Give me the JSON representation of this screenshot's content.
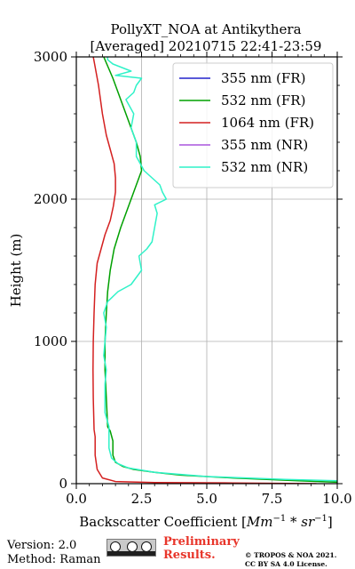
{
  "chart_data": {
    "type": "line",
    "title": "PollyXT_NOA at Antikythera",
    "subtitle": "[Averaged] 20210715 22:41-23:59",
    "xlabel": "Backscatter Coefficient [",
    "xlabel_math": "Mm",
    "xlabel_sup1": "−1",
    "xlabel_mid": " * ",
    "xlabel_math2": "sr",
    "xlabel_sup2": "−1",
    "xlabel_end": "]",
    "ylabel": "Height (m)",
    "xlim": [
      0,
      10
    ],
    "ylim": [
      0,
      3000
    ],
    "xticks": [
      0,
      2.5,
      5,
      7.5,
      10
    ],
    "xtick_labels": [
      "0.0",
      "2.5",
      "5.0",
      "7.5",
      "10.0"
    ],
    "yticks": [
      0,
      1000,
      2000,
      3000
    ],
    "ytick_labels": [
      "0",
      "1000",
      "2000",
      "3000"
    ],
    "grid": true,
    "legend_position": "top-right",
    "series": [
      {
        "name": "355 nm (FR)",
        "color": "#2222cc",
        "points": []
      },
      {
        "name": "532 nm (FR)",
        "color": "#00a000",
        "points": [
          [
            10,
            10
          ],
          [
            8.5,
            20
          ],
          [
            6,
            40
          ],
          [
            4,
            60
          ],
          [
            3,
            80
          ],
          [
            2.2,
            100
          ],
          [
            1.8,
            120
          ],
          [
            1.5,
            150
          ],
          [
            1.4,
            200
          ],
          [
            1.4,
            300
          ],
          [
            1.3,
            370
          ],
          [
            1.2,
            400
          ],
          [
            1.15,
            600
          ],
          [
            1.1,
            800
          ],
          [
            1.1,
            1000
          ],
          [
            1.15,
            1200
          ],
          [
            1.2,
            1350
          ],
          [
            1.3,
            1500
          ],
          [
            1.45,
            1650
          ],
          [
            1.7,
            1800
          ],
          [
            2.0,
            1950
          ],
          [
            2.3,
            2100
          ],
          [
            2.5,
            2200
          ],
          [
            2.45,
            2300
          ],
          [
            2.3,
            2400
          ],
          [
            2.0,
            2550
          ],
          [
            1.7,
            2700
          ],
          [
            1.4,
            2850
          ],
          [
            1.05,
            3000
          ]
        ]
      },
      {
        "name": "1064 nm (FR)",
        "color": "#d42020",
        "points": [
          [
            9.2,
            0
          ],
          [
            6,
            5
          ],
          [
            3,
            8
          ],
          [
            1.5,
            15
          ],
          [
            1.0,
            40
          ],
          [
            0.8,
            100
          ],
          [
            0.72,
            200
          ],
          [
            0.72,
            330
          ],
          [
            0.68,
            380
          ],
          [
            0.65,
            600
          ],
          [
            0.64,
            800
          ],
          [
            0.65,
            1000
          ],
          [
            0.68,
            1200
          ],
          [
            0.72,
            1400
          ],
          [
            0.8,
            1550
          ],
          [
            0.95,
            1650
          ],
          [
            1.1,
            1750
          ],
          [
            1.3,
            1850
          ],
          [
            1.42,
            1950
          ],
          [
            1.5,
            2050
          ],
          [
            1.5,
            2150
          ],
          [
            1.45,
            2250
          ],
          [
            1.3,
            2350
          ],
          [
            1.15,
            2450
          ],
          [
            1.0,
            2600
          ],
          [
            0.85,
            2800
          ],
          [
            0.7,
            2950
          ],
          [
            0.65,
            3000
          ]
        ]
      },
      {
        "name": "355 nm (NR)",
        "color": "#aa55dd",
        "points": []
      },
      {
        "name": "532 nm (NR)",
        "color": "#2ff2c8",
        "points": [
          [
            10,
            20
          ],
          [
            8,
            30
          ],
          [
            5,
            50
          ],
          [
            3,
            80
          ],
          [
            2,
            110
          ],
          [
            1.6,
            140
          ],
          [
            1.35,
            180
          ],
          [
            1.25,
            250
          ],
          [
            1.25,
            400
          ],
          [
            1.1,
            500
          ],
          [
            1.1,
            700
          ],
          [
            1.15,
            800
          ],
          [
            1.05,
            900
          ],
          [
            1.1,
            1000
          ],
          [
            1.15,
            1100
          ],
          [
            1.05,
            1200
          ],
          [
            1.2,
            1280
          ],
          [
            1.6,
            1350
          ],
          [
            2.1,
            1400
          ],
          [
            2.3,
            1450
          ],
          [
            2.5,
            1500
          ],
          [
            2.4,
            1600
          ],
          [
            2.7,
            1650
          ],
          [
            2.9,
            1700
          ],
          [
            3.0,
            1800
          ],
          [
            3.1,
            1900
          ],
          [
            3.0,
            1960
          ],
          [
            3.45,
            2000
          ],
          [
            3.3,
            2050
          ],
          [
            3.2,
            2100
          ],
          [
            2.6,
            2200
          ],
          [
            2.3,
            2300
          ],
          [
            2.3,
            2400
          ],
          [
            2.1,
            2500
          ],
          [
            2.2,
            2600
          ],
          [
            1.9,
            2700
          ],
          [
            2.2,
            2750
          ],
          [
            2.3,
            2800
          ],
          [
            2.5,
            2850
          ],
          [
            1.5,
            2870
          ],
          [
            2.1,
            2900
          ],
          [
            1.4,
            2950
          ],
          [
            1.2,
            2980
          ],
          [
            1.2,
            3000
          ]
        ]
      }
    ]
  },
  "footer": {
    "version": "Version: 2.0",
    "method": "Method: Raman",
    "preliminary_line1": "Preliminary",
    "preliminary_line2": "Results.",
    "copyright_line1": "© TROPOS & NOA 2021.",
    "copyright_line2": "CC BY SA 4.0 License."
  }
}
